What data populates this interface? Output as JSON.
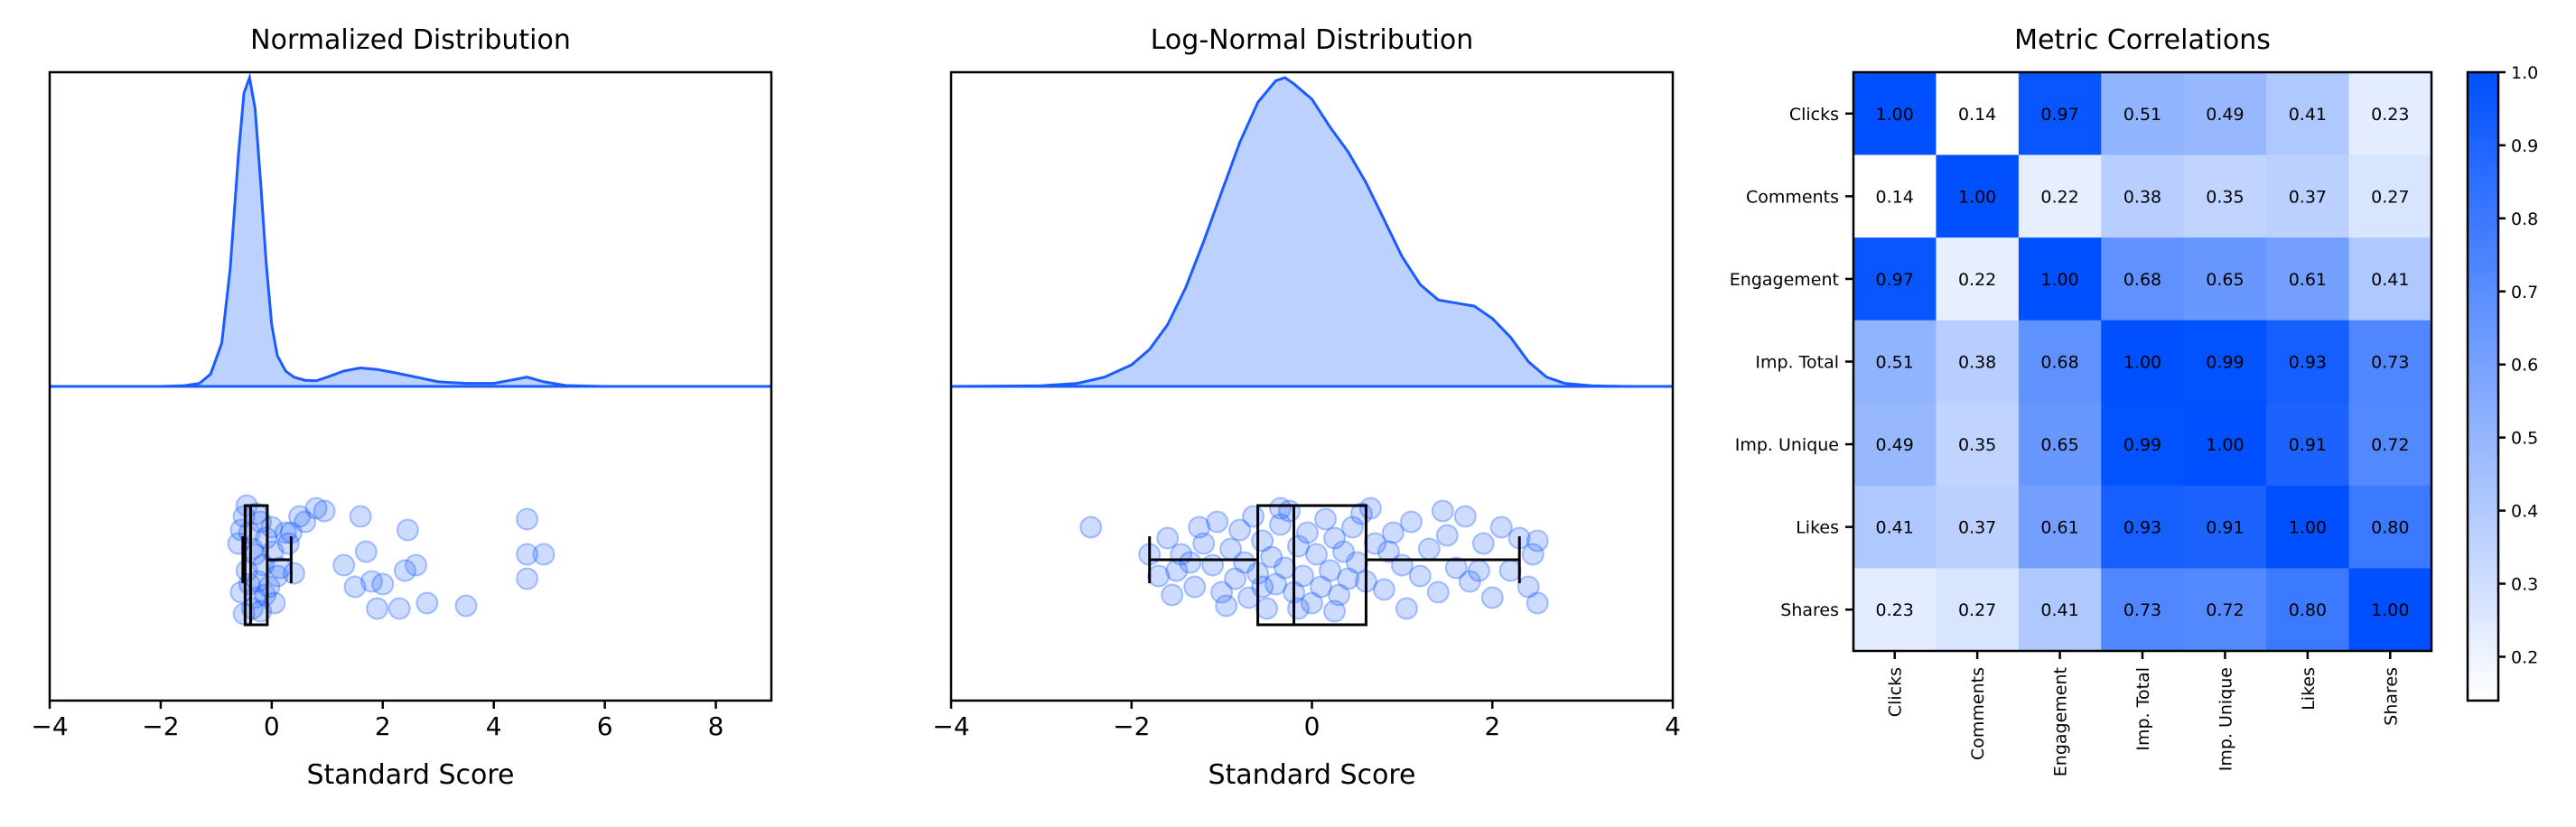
{
  "chart_data": [
    {
      "type": "area",
      "subtype": "raincloud",
      "title": "Normalized Distribution",
      "xlabel": "Standard Score",
      "xlim": [
        -4,
        9
      ],
      "xticks": [
        -4,
        -2,
        0,
        2,
        4,
        6,
        8
      ],
      "xtick_labels": [
        "−4",
        "−2",
        "0",
        "2",
        "4",
        "6",
        "8"
      ],
      "color": "#1a5cff",
      "fill_color": "#bdd1ff",
      "density": {
        "x": [
          -4,
          -2,
          -1.6,
          -1.3,
          -1.1,
          -0.9,
          -0.75,
          -0.6,
          -0.5,
          -0.4,
          -0.3,
          -0.2,
          -0.1,
          0.0,
          0.1,
          0.25,
          0.4,
          0.6,
          0.8,
          1.0,
          1.3,
          1.6,
          1.9,
          2.2,
          2.6,
          3.0,
          3.5,
          4.0,
          4.3,
          4.6,
          4.9,
          5.3,
          6.0,
          9.0
        ],
        "y": [
          0,
          0,
          0.002,
          0.01,
          0.04,
          0.14,
          0.38,
          0.75,
          0.95,
          1.0,
          0.9,
          0.66,
          0.4,
          0.2,
          0.1,
          0.05,
          0.03,
          0.02,
          0.018,
          0.03,
          0.05,
          0.06,
          0.055,
          0.045,
          0.03,
          0.015,
          0.01,
          0.01,
          0.02,
          0.03,
          0.015,
          0.003,
          0.0,
          0
        ]
      },
      "box": {
        "whisker_low": -0.52,
        "q1": -0.48,
        "median": -0.38,
        "q3": -0.08,
        "whisker_high": 0.35
      },
      "points": [
        [
          -0.6,
          -0.3
        ],
        [
          -0.55,
          0.6
        ],
        [
          -0.5,
          -0.8
        ],
        [
          -0.45,
          0.2
        ],
        [
          -0.4,
          -0.5
        ],
        [
          -0.35,
          0.9
        ],
        [
          -0.3,
          -0.1
        ],
        [
          -0.25,
          0.4
        ],
        [
          -0.2,
          -0.7
        ],
        [
          -0.15,
          0.1
        ],
        [
          -0.5,
          1.0
        ],
        [
          -0.45,
          -1.0
        ],
        [
          -0.35,
          -0.2
        ],
        [
          -0.3,
          0.7
        ],
        [
          -0.2,
          0.95
        ],
        [
          -0.1,
          -0.4
        ],
        [
          -0.05,
          0.5
        ],
        [
          0.0,
          -0.6
        ],
        [
          0.05,
          0.8
        ],
        [
          0.1,
          0.3
        ],
        [
          -0.55,
          -0.55
        ],
        [
          -0.4,
          0.45
        ],
        [
          -0.28,
          -0.85
        ],
        [
          -0.12,
          0.65
        ],
        [
          0.02,
          -0.15
        ],
        [
          0.15,
          0.15
        ],
        [
          0.25,
          -0.5
        ],
        [
          0.3,
          -0.3
        ],
        [
          0.35,
          -0.5
        ],
        [
          0.4,
          0.25
        ],
        [
          0.5,
          -0.8
        ],
        [
          0.6,
          -0.7
        ],
        [
          0.8,
          -0.95
        ],
        [
          0.95,
          -0.9
        ],
        [
          1.3,
          0.1
        ],
        [
          1.5,
          0.5
        ],
        [
          1.6,
          -0.8
        ],
        [
          1.7,
          -0.15
        ],
        [
          1.8,
          0.4
        ],
        [
          1.9,
          0.9
        ],
        [
          2.0,
          0.45
        ],
        [
          2.3,
          0.9
        ],
        [
          2.4,
          0.2
        ],
        [
          2.45,
          -0.55
        ],
        [
          2.6,
          0.1
        ],
        [
          2.8,
          0.8
        ],
        [
          3.5,
          0.85
        ],
        [
          4.6,
          0.35
        ],
        [
          4.6,
          -0.75
        ],
        [
          4.6,
          -0.1
        ],
        [
          4.9,
          -0.1
        ]
      ]
    },
    {
      "type": "area",
      "subtype": "raincloud",
      "title": "Log-Normal Distribution",
      "xlabel": "Standard Score",
      "xlim": [
        -4,
        4
      ],
      "xticks": [
        -4,
        -2,
        0,
        2,
        4
      ],
      "xtick_labels": [
        "−4",
        "−2",
        "0",
        "2",
        "4"
      ],
      "color": "#1a5cff",
      "fill_color": "#bdd1ff",
      "density": {
        "x": [
          -4,
          -3.0,
          -2.6,
          -2.3,
          -2.0,
          -1.8,
          -1.6,
          -1.4,
          -1.2,
          -1.0,
          -0.8,
          -0.6,
          -0.4,
          -0.3,
          -0.2,
          0.0,
          0.2,
          0.4,
          0.6,
          0.8,
          1.0,
          1.2,
          1.4,
          1.6,
          1.8,
          2.0,
          2.2,
          2.4,
          2.6,
          2.8,
          3.1,
          3.5,
          4.0
        ],
        "y": [
          0,
          0.002,
          0.01,
          0.03,
          0.07,
          0.12,
          0.2,
          0.32,
          0.47,
          0.63,
          0.79,
          0.92,
          0.99,
          1.0,
          0.98,
          0.93,
          0.84,
          0.76,
          0.66,
          0.54,
          0.42,
          0.33,
          0.28,
          0.27,
          0.26,
          0.22,
          0.16,
          0.08,
          0.03,
          0.01,
          0.002,
          0.0,
          0
        ]
      },
      "box": {
        "whisker_low": -1.8,
        "q1": -0.6,
        "median": -0.2,
        "q3": 0.6,
        "whisker_high": 2.3
      },
      "points": [
        [
          -2.45,
          -0.6
        ],
        [
          -1.8,
          -0.1
        ],
        [
          -1.7,
          0.3
        ],
        [
          -1.6,
          -0.4
        ],
        [
          -1.5,
          0.2
        ],
        [
          -1.45,
          -0.1
        ],
        [
          -1.3,
          0.5
        ],
        [
          -1.2,
          -0.3
        ],
        [
          -1.1,
          0.1
        ],
        [
          -1.05,
          -0.7
        ],
        [
          -1.0,
          0.6
        ],
        [
          -0.9,
          -0.2
        ],
        [
          -0.85,
          0.35
        ],
        [
          -0.8,
          -0.55
        ],
        [
          -0.75,
          0.05
        ],
        [
          -0.7,
          0.7
        ],
        [
          -0.65,
          -0.8
        ],
        [
          -0.6,
          0.25
        ],
        [
          -0.55,
          -0.35
        ],
        [
          -0.5,
          0.9
        ],
        [
          -0.45,
          -0.05
        ],
        [
          -0.4,
          0.45
        ],
        [
          -0.35,
          -0.65
        ],
        [
          -0.3,
          0.15
        ],
        [
          -0.25,
          -0.9
        ],
        [
          -0.2,
          0.6
        ],
        [
          -0.15,
          -0.25
        ],
        [
          -0.1,
          0.3
        ],
        [
          -0.05,
          -0.5
        ],
        [
          0.0,
          0.8
        ],
        [
          0.05,
          -0.1
        ],
        [
          0.1,
          0.5
        ],
        [
          0.15,
          -0.75
        ],
        [
          0.2,
          0.2
        ],
        [
          0.25,
          -0.4
        ],
        [
          0.3,
          0.65
        ],
        [
          0.35,
          -0.15
        ],
        [
          0.4,
          0.35
        ],
        [
          0.45,
          -0.6
        ],
        [
          0.5,
          0.05
        ],
        [
          0.55,
          -0.85
        ],
        [
          0.6,
          0.4
        ],
        [
          0.7,
          -0.3
        ],
        [
          0.8,
          0.55
        ],
        [
          0.9,
          -0.5
        ],
        [
          1.0,
          0.1
        ],
        [
          1.1,
          -0.7
        ],
        [
          1.2,
          0.3
        ],
        [
          1.3,
          -0.2
        ],
        [
          1.4,
          0.6
        ],
        [
          1.5,
          -0.45
        ],
        [
          1.6,
          0.15
        ],
        [
          1.7,
          -0.8
        ],
        [
          1.75,
          0.4
        ],
        [
          1.9,
          -0.3
        ],
        [
          2.0,
          0.7
        ],
        [
          2.1,
          -0.6
        ],
        [
          2.2,
          0.2
        ],
        [
          2.3,
          -0.4
        ],
        [
          2.4,
          0.5
        ],
        [
          2.45,
          -0.1
        ],
        [
          2.5,
          0.8
        ],
        [
          2.5,
          -0.35
        ],
        [
          -1.55,
          0.65
        ],
        [
          -1.25,
          -0.6
        ],
        [
          -0.95,
          0.85
        ],
        [
          -0.55,
          0.5
        ],
        [
          -0.15,
          0.9
        ],
        [
          0.25,
          0.95
        ],
        [
          0.65,
          -0.95
        ],
        [
          1.05,
          0.9
        ],
        [
          1.45,
          -0.9
        ],
        [
          1.85,
          0.2
        ],
        [
          -1.35,
          0.05
        ],
        [
          -0.35,
          -0.95
        ],
        [
          0.85,
          -0.15
        ]
      ]
    },
    {
      "type": "heatmap",
      "title": "Metric Correlations",
      "labels": [
        "Clicks",
        "Comments",
        "Engagement",
        "Imp. Total",
        "Imp. Unique",
        "Likes",
        "Shares"
      ],
      "values": [
        [
          1.0,
          0.14,
          0.97,
          0.51,
          0.49,
          0.41,
          0.23
        ],
        [
          0.14,
          1.0,
          0.22,
          0.38,
          0.35,
          0.37,
          0.27
        ],
        [
          0.97,
          0.22,
          1.0,
          0.68,
          0.65,
          0.61,
          0.41
        ],
        [
          0.51,
          0.38,
          0.68,
          1.0,
          0.99,
          0.93,
          0.73
        ],
        [
          0.49,
          0.35,
          0.65,
          0.99,
          1.0,
          0.91,
          0.72
        ],
        [
          0.41,
          0.37,
          0.61,
          0.93,
          0.91,
          1.0,
          0.8
        ],
        [
          0.23,
          0.27,
          0.41,
          0.73,
          0.72,
          0.8,
          1.0
        ]
      ],
      "value_labels": [
        [
          "1.00",
          "0.14",
          "0.97",
          "0.51",
          "0.49",
          "0.41",
          "0.23"
        ],
        [
          "0.14",
          "1.00",
          "0.22",
          "0.38",
          "0.35",
          "0.37",
          "0.27"
        ],
        [
          "0.97",
          "0.22",
          "1.00",
          "0.68",
          "0.65",
          "0.61",
          "0.41"
        ],
        [
          "0.51",
          "0.38",
          "0.68",
          "1.00",
          "0.99",
          "0.93",
          "0.73"
        ],
        [
          "0.49",
          "0.35",
          "0.65",
          "0.99",
          "1.00",
          "0.91",
          "0.72"
        ],
        [
          "0.41",
          "0.37",
          "0.61",
          "0.93",
          "0.91",
          "1.00",
          "0.80"
        ],
        [
          "0.23",
          "0.27",
          "0.41",
          "0.73",
          "0.72",
          "0.80",
          "1.00"
        ]
      ],
      "colorbar": {
        "vmin": 0.14,
        "vmax": 1.0,
        "ticks": [
          0.2,
          0.3,
          0.4,
          0.5,
          0.6,
          0.7,
          0.8,
          0.9,
          1.0
        ],
        "tick_labels": [
          "0.2",
          "0.3",
          "0.4",
          "0.5",
          "0.6",
          "0.7",
          "0.8",
          "0.9",
          "1.0"
        ],
        "color_low": "#ffffff",
        "color_high": "#0050ff"
      }
    }
  ]
}
